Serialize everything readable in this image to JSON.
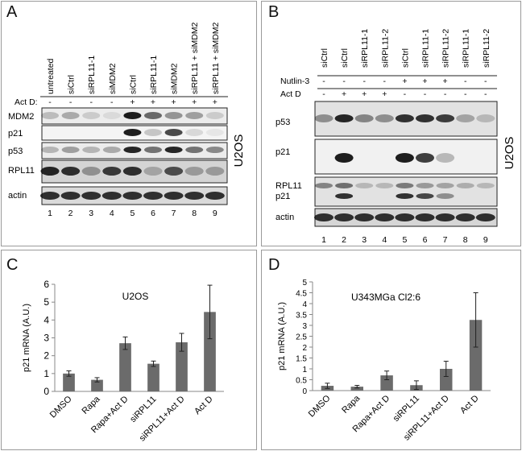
{
  "panels": {
    "A": "A",
    "B": "B",
    "C": "C",
    "D": "D"
  },
  "panelA": {
    "lane_labels": [
      "untreated",
      "siCtrl",
      "siRPL11-1",
      "siMDM2",
      "siCtrl",
      "siRPL11-1",
      "siMDM2",
      "siRPL11 + siMDM2",
      "siRPL11 + siMDM2"
    ],
    "actd_label": "Act D:",
    "actd_signs": [
      "-",
      "-",
      "-",
      "-",
      "+",
      "+",
      "+",
      "+",
      "+"
    ],
    "blots": [
      "MDM2",
      "p21",
      "p53",
      "RPL11",
      "actin"
    ],
    "lane_numbers": [
      "1",
      "2",
      "3",
      "4",
      "5",
      "6",
      "7",
      "8",
      "9"
    ],
    "cell_line": "U2OS"
  },
  "panelB": {
    "lane_labels": [
      "siCtrl",
      "siCtrl",
      "siRPL11-1",
      "siRPL11-2",
      "siCtrl",
      "siRPL11-1",
      "siRPL11-2",
      "siRPL11-1",
      "siRPL11-2"
    ],
    "nutlin_label": "Nutlin-3",
    "nutlin_signs": [
      "-",
      "-",
      "-",
      "-",
      "+",
      "+",
      "+",
      "-",
      "-"
    ],
    "actd_label": "Act D",
    "actd_signs": [
      "-",
      "+",
      "+",
      "+",
      "-",
      "-",
      "-",
      "-",
      "-"
    ],
    "blots": [
      "p53",
      "p21",
      "RPL11",
      "p21",
      "actin"
    ],
    "lane_numbers": [
      "1",
      "2",
      "3",
      "4",
      "5",
      "6",
      "7",
      "8",
      "9"
    ],
    "cell_line": "U2OS"
  },
  "chart_data": [
    {
      "type": "bar",
      "title": "U2OS",
      "ylabel": "p21 mRNA (A.U.)",
      "categories": [
        "DMSO",
        "Rapa",
        "Rapa+Act D",
        "siRPL11",
        "siRPL11+Act D",
        "Act D"
      ],
      "values": [
        1.0,
        0.65,
        2.7,
        1.55,
        2.75,
        4.45
      ],
      "errors": [
        0.15,
        0.12,
        0.35,
        0.15,
        0.5,
        1.5
      ],
      "ylim": [
        0,
        6
      ],
      "yticks": [
        "0",
        "1",
        "2",
        "3",
        "4",
        "5",
        "6"
      ],
      "color": "#6b6b6b"
    },
    {
      "type": "bar",
      "title": "U343MGa Cl2:6",
      "ylabel": "p21 mRNA (A.U.)",
      "categories": [
        "DMSO",
        "Rapa",
        "Rapa+Act D",
        "siRPL11",
        "siRPL11+Act D",
        "Act D"
      ],
      "values": [
        0.22,
        0.18,
        0.7,
        0.25,
        1.0,
        3.25
      ],
      "errors": [
        0.12,
        0.06,
        0.2,
        0.2,
        0.35,
        1.25
      ],
      "ylim": [
        0,
        5
      ],
      "yticks": [
        "0",
        "0.5",
        "1",
        "1.5",
        "2",
        "2.5",
        "3",
        "3.5",
        "4",
        "4.5",
        "5"
      ],
      "color": "#6b6b6b"
    }
  ]
}
